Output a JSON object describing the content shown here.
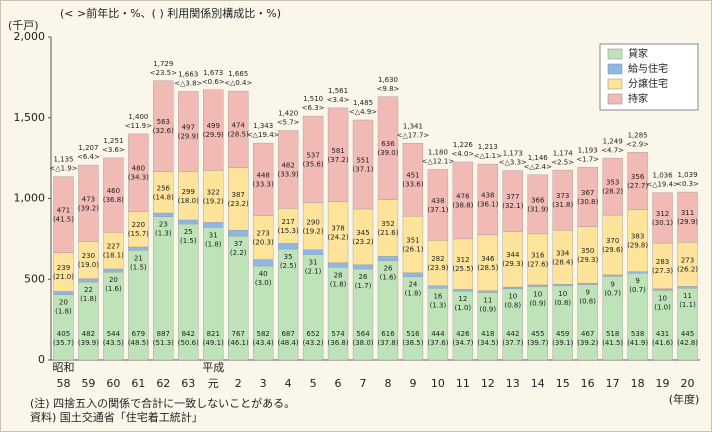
{
  "chart_data": {
    "type": "stacked-bar",
    "subtitle": "(< >前年比・%、( ) 利用関係別構成比・%)",
    "y_label": "(千戸)",
    "x_label": "(年度)",
    "era_labels": [
      {
        "label": "昭和",
        "index": 0
      },
      {
        "label": "平成",
        "index": 6
      }
    ],
    "categories": [
      "58",
      "59",
      "60",
      "61",
      "62",
      "63",
      "元",
      "2",
      "3",
      "4",
      "5",
      "6",
      "7",
      "8",
      "9",
      "10",
      "11",
      "12",
      "13",
      "14",
      "15",
      "16",
      "17",
      "18",
      "19",
      "20"
    ],
    "ylim": [
      0,
      2000
    ],
    "yticks": [
      0,
      500,
      {
        "value": 1000,
        "label": "1,000"
      },
      {
        "value": 1500,
        "label": "1,500"
      },
      {
        "value": 2000,
        "label": "2,000"
      }
    ],
    "series": [
      {
        "name": "貸家",
        "color": "#bfe3b9",
        "values": [
          405,
          482,
          544,
          679,
          887,
          842,
          821,
          767,
          582,
          687,
          652,
          574,
          564,
          616,
          516,
          444,
          426,
          418,
          442,
          455,
          459,
          467,
          518,
          538,
          431,
          445
        ],
        "share_labels": [
          "(35.7)",
          "(39.9)",
          "(43.5)",
          "(48.5)",
          "(51.3)",
          "(50.6)",
          "(49.1)",
          "(46.1)",
          "(43.4)",
          "(48.4)",
          "(43.2)",
          "(36.8)",
          "(38.0)",
          "(37.8)",
          "(38.5)",
          "(37.6)",
          "(34.7)",
          "(34.5)",
          "(37.7)",
          "(39.7)",
          "(39.1)",
          "(39.2)",
          "(41.5)",
          "(41.9)",
          "(41.6)",
          "(42.8)"
        ]
      },
      {
        "name": "給与住宅",
        "color": "#8fb6e8",
        "values": [
          20,
          22,
          20,
          21,
          23,
          25,
          31,
          37,
          40,
          35,
          31,
          28,
          26,
          26,
          24,
          16,
          12,
          11,
          10,
          10,
          10,
          9,
          9,
          9,
          10,
          11
        ],
        "share_labels": [
          "(1.8)",
          "(1.8)",
          "(1.6)",
          "(1.5)",
          "(1.3)",
          "(1.5)",
          "(1.8)",
          "(2.2)",
          "(3.0)",
          "(2.5)",
          "(2.1)",
          "(1.8)",
          "(1.7)",
          "(1.6)",
          "(1.8)",
          "(1.3)",
          "(1.0)",
          "(0.9)",
          "(0.8)",
          "(0.9)",
          "(0.8)",
          "(0.8)",
          "(0.7)",
          "(0.7)",
          "(1.0)",
          "(1.1)"
        ]
      },
      {
        "name": "分譲住宅",
        "color": "#fde49a",
        "values": [
          239,
          230,
          227,
          220,
          256,
          299,
          322,
          387,
          273,
          217,
          290,
          378,
          345,
          352,
          351,
          282,
          312,
          346,
          344,
          316,
          334,
          350,
          370,
          383,
          283,
          273
        ],
        "share_labels": [
          "(21.0)",
          "(19.0)",
          "(18.1)",
          "(15.7)",
          "(14.8)",
          "(18.0)",
          "(19.2)",
          "(23.2)",
          "(20.3)",
          "(15.3)",
          "(19.2)",
          "(24.2)",
          "(23.2)",
          "(21.6)",
          "(26.1)",
          "(23.9)",
          "(25.5)",
          "(28.5)",
          "(29.3)",
          "(27.6)",
          "(28.4)",
          "(29.3)",
          "(29.6)",
          "(29.8)",
          "(27.3)",
          "(26.2)"
        ]
      },
      {
        "name": "持家",
        "color": "#f2bab4",
        "values": [
          471,
          473,
          460,
          480,
          563,
          497,
          499,
          474,
          448,
          482,
          537,
          581,
          551,
          636,
          451,
          438,
          476,
          438,
          377,
          366,
          373,
          367,
          353,
          356,
          312,
          311
        ],
        "share_labels": [
          "(41.5)",
          "(39.2)",
          "(36.8)",
          "(34.3)",
          "(32.6)",
          "(29.9)",
          "(29.9)",
          "(28.5)",
          "(33.3)",
          "(33.9)",
          "(35.6)",
          "(37.2)",
          "(37.1)",
          "(39.0)",
          "(33.6)",
          "(37.1)",
          "(38.8)",
          "(36.1)",
          "(32.1)",
          "(31.9)",
          "(31.8)",
          "(30.8)",
          "(28.2)",
          "(27.7)",
          "(30.1)",
          "(29.9)"
        ]
      }
    ],
    "totals": [
      1135,
      1207,
      1251,
      1400,
      1729,
      1663,
      1673,
      1665,
      1343,
      1420,
      1510,
      1561,
      1485,
      1630,
      1341,
      1180,
      1226,
      1213,
      1173,
      1146,
      1174,
      1193,
      1249,
      1285,
      1036,
      1039
    ],
    "total_labels": [
      "1,135",
      "1,207",
      "1,251",
      "1,400",
      "1,729",
      "1,663",
      "1,673",
      "1,665",
      "1,343",
      "1,420",
      "1,510",
      "1,561",
      "1,485",
      "1,630",
      "1,341",
      "1,180",
      "1,226",
      "1,213",
      "1,173",
      "1,146",
      "1,174",
      "1,193",
      "1,249",
      "1,285",
      "1,036",
      "1,039"
    ],
    "yoy_labels": [
      "<△1.9>",
      "<6.4>",
      "<3.6>",
      "<11.9>",
      "<23.5>",
      "<△3.8>",
      "<0.6>",
      "<△0.4>",
      "<△19.4>",
      "<5.7>",
      "<6.3>",
      "<3.4>",
      "<△4.9>",
      "<9.8>",
      "<△17.7>",
      "<△12.1>",
      "<4.0>",
      "<△1.1>",
      "<△3.3>",
      "<△2.4>",
      "<2.5>",
      "<1.7>",
      "<4.7>",
      "<2.9>",
      "<△19.4>",
      "<0.3>"
    ],
    "legend_position": "upper right",
    "notes": [
      "(注) 四捨五入の関係で合計に一致しないことがある。",
      "資料) 国土交通省「住宅着工統計」"
    ]
  }
}
